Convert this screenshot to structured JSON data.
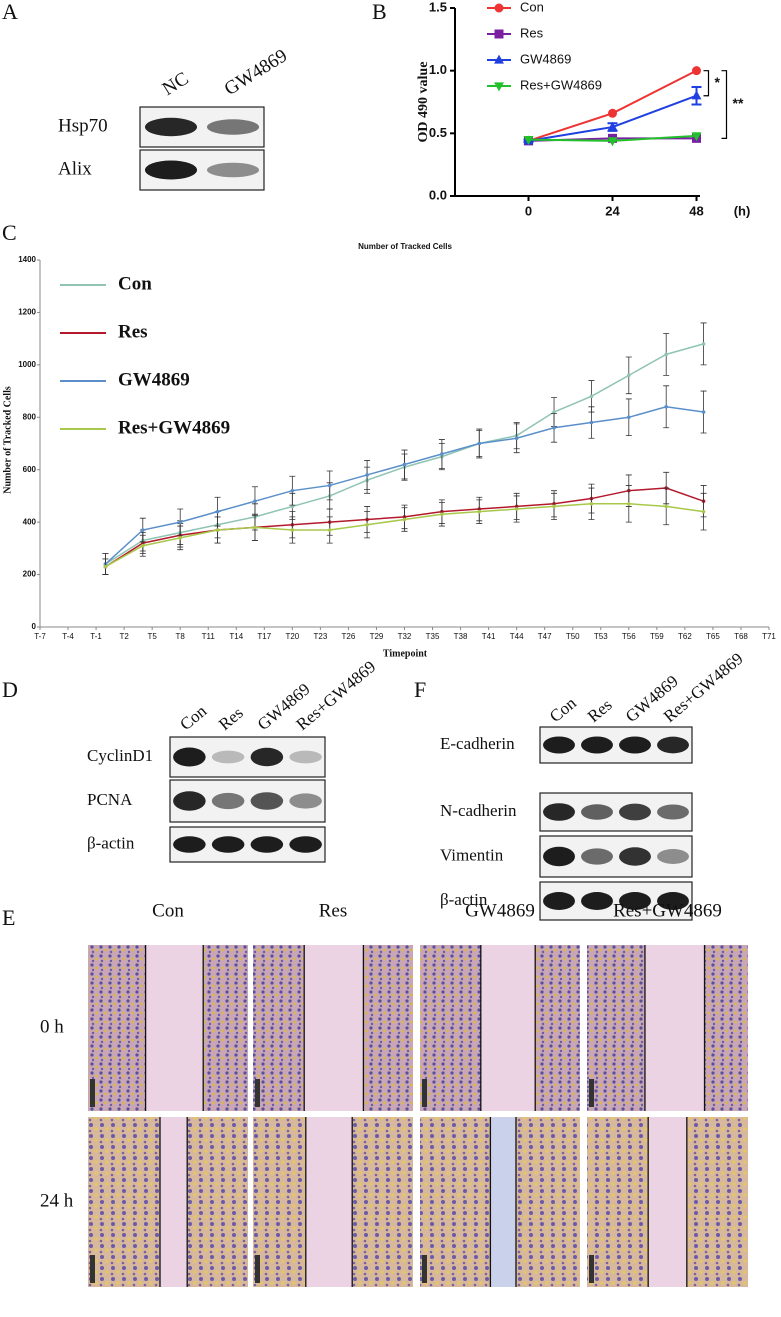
{
  "panel_labels": [
    "A",
    "B",
    "C",
    "D",
    "F",
    "E"
  ],
  "blot_a": {
    "lanes": [
      "NC",
      "GW4869"
    ],
    "rows": [
      "Hsp70",
      "Alix"
    ]
  },
  "blot_d": {
    "lanes": [
      "Con",
      "Res",
      "GW4869",
      "Res+GW4869"
    ],
    "rows": [
      "CyclinD1",
      "PCNA",
      "β-actin"
    ]
  },
  "blot_f": {
    "lanes": [
      "Con",
      "Res",
      "GW4869",
      "Res+GW4869"
    ],
    "rows": [
      "E-cadherin",
      "N-cadherin",
      "Vimentin",
      "β-actin"
    ]
  },
  "scratch": {
    "columns": [
      "Con",
      "Res",
      "GW4869",
      "Res+GW4869"
    ],
    "rows": [
      "0 h",
      "24 h"
    ]
  },
  "chart_data": [
    {
      "type": "line",
      "x": [
        0,
        24,
        48
      ],
      "xlim": [
        -21,
        49
      ],
      "xticks": [
        0,
        24,
        48
      ],
      "x_label": "(h)",
      "y_label": "OD 490 value",
      "ylim": [
        0,
        1.5
      ],
      "yticks": [
        {
          "value": 0,
          "label": "0.0"
        },
        {
          "value": 0.5,
          "label": "0.5"
        },
        {
          "value": 1,
          "label": "1.0"
        },
        {
          "value": 1.5,
          "label": "1.5"
        }
      ],
      "legend": "upper left",
      "annotations": [
        "*",
        "**"
      ],
      "series": [
        {
          "name": "Con",
          "color": "#ee3333",
          "marker": "circle",
          "values": [
            0.44,
            0.66,
            1.0
          ]
        },
        {
          "name": "Res",
          "color": "#7a1fa2",
          "marker": "square",
          "values": [
            0.44,
            0.46,
            0.46
          ]
        },
        {
          "name": "GW4869",
          "color": "#1f3fe0",
          "marker": "triangle",
          "values": [
            0.44,
            0.55,
            0.8
          ],
          "errors": [
            0.01,
            0.03,
            0.07
          ]
        },
        {
          "name": "Res+GW4869",
          "color": "#22c02a",
          "marker": "triangle-down",
          "values": [
            0.45,
            0.44,
            0.48
          ]
        }
      ]
    },
    {
      "type": "line",
      "title": "Number of Tracked Cells",
      "x_label": "Timepoint",
      "y_label": "Number of Tracked Cells",
      "x": [
        0,
        4,
        8,
        12,
        16,
        20,
        24,
        28,
        32,
        36,
        40,
        44,
        48,
        52,
        56,
        60,
        64
      ],
      "xlim": [
        -7,
        71
      ],
      "xticks": [
        {
          "value": -7,
          "label": "T-7"
        },
        {
          "value": -4,
          "label": "T-4"
        },
        {
          "value": -1,
          "label": "T-1"
        },
        {
          "value": 2,
          "label": "T2"
        },
        {
          "value": 5,
          "label": "T5"
        },
        {
          "value": 8,
          "label": "T8"
        },
        {
          "value": 11,
          "label": "T11"
        },
        {
          "value": 14,
          "label": "T14"
        },
        {
          "value": 17,
          "label": "T17"
        },
        {
          "value": 20,
          "label": "T20"
        },
        {
          "value": 23,
          "label": "T23"
        },
        {
          "value": 26,
          "label": "T26"
        },
        {
          "value": 29,
          "label": "T29"
        },
        {
          "value": 32,
          "label": "T32"
        },
        {
          "value": 35,
          "label": "T35"
        },
        {
          "value": 38,
          "label": "T38"
        },
        {
          "value": 41,
          "label": "T41"
        },
        {
          "value": 44,
          "label": "T44"
        },
        {
          "value": 47,
          "label": "T47"
        },
        {
          "value": 50,
          "label": "T50"
        },
        {
          "value": 53,
          "label": "T53"
        },
        {
          "value": 56,
          "label": "T56"
        },
        {
          "value": 59,
          "label": "T59"
        },
        {
          "value": 62,
          "label": "T62"
        },
        {
          "value": 65,
          "label": "T65"
        },
        {
          "value": 68,
          "label": "T68"
        },
        {
          "value": 71,
          "label": "T71"
        }
      ],
      "ylim": [
        0,
        1400
      ],
      "yticks": [
        0,
        200,
        400,
        600,
        800,
        1000,
        1200,
        1400
      ],
      "legend": "upper left",
      "series": [
        {
          "name": "Con",
          "color": "#8fc4b3",
          "values": [
            240,
            330,
            360,
            390,
            420,
            460,
            500,
            560,
            610,
            650,
            700,
            730,
            820,
            880,
            960,
            1040,
            1080
          ],
          "errors": [
            40,
            40,
            45,
            50,
            50,
            50,
            50,
            50,
            50,
            50,
            50,
            50,
            55,
            60,
            70,
            80,
            80
          ]
        },
        {
          "name": "Res",
          "color": "#b3192b",
          "values": [
            230,
            320,
            350,
            370,
            380,
            390,
            400,
            410,
            420,
            440,
            450,
            460,
            470,
            490,
            520,
            530,
            480
          ],
          "errors": [
            30,
            40,
            45,
            50,
            50,
            50,
            50,
            50,
            45,
            45,
            45,
            50,
            50,
            55,
            60,
            60,
            60
          ]
        },
        {
          "name": "GW4869",
          "color": "#5b8fca",
          "values": [
            240,
            370,
            400,
            440,
            480,
            520,
            540,
            580,
            620,
            660,
            700,
            720,
            760,
            780,
            800,
            840,
            820
          ],
          "errors": [
            40,
            45,
            50,
            55,
            55,
            55,
            55,
            55,
            55,
            55,
            55,
            55,
            55,
            60,
            70,
            80,
            80
          ]
        },
        {
          "name": "Res+GW4869",
          "color": "#a8c84a",
          "values": [
            230,
            310,
            340,
            370,
            380,
            370,
            370,
            390,
            410,
            430,
            440,
            450,
            460,
            470,
            470,
            460,
            440
          ],
          "errors": [
            30,
            40,
            45,
            50,
            50,
            50,
            50,
            50,
            45,
            45,
            45,
            50,
            50,
            60,
            70,
            70,
            70
          ]
        }
      ]
    }
  ]
}
